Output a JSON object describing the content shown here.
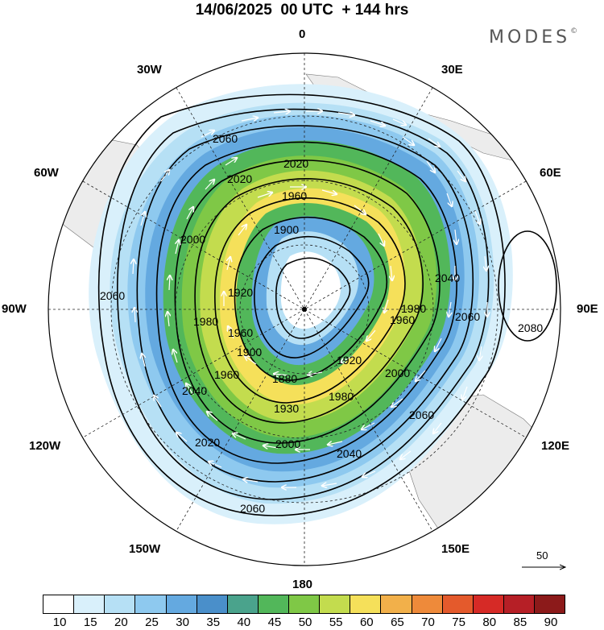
{
  "header": {
    "title": "14/06/2025  00 UTC  + 144 hrs",
    "brand": "MODES",
    "brand_mark": "©"
  },
  "map": {
    "longitude_labels": {
      "top": "0",
      "top_right": "30E",
      "right_upper": "60E",
      "right": "90E",
      "right_lower": "120E",
      "bottom_right": "150E",
      "bottom": "180",
      "bottom_left": "150W",
      "left_lower": "120W",
      "left": "90W",
      "left_upper": "60W",
      "top_left": "30W"
    },
    "contour_labels": [
      "2060",
      "2020",
      "2020",
      "1960",
      "2000",
      "1900",
      "1920",
      "1980",
      "1960",
      "2040",
      "2060",
      "2080",
      "2060",
      "1980",
      "1900",
      "1880",
      "1920",
      "1960",
      "1960",
      "2000",
      "1980",
      "2040",
      "2020",
      "1930",
      "2000",
      "2060",
      "2040",
      "2060"
    ],
    "vector_reference": "50"
  },
  "colorbar": {
    "ticks": [
      "10",
      "15",
      "20",
      "25",
      "30",
      "35",
      "40",
      "45",
      "50",
      "55",
      "60",
      "65",
      "70",
      "75",
      "80",
      "85",
      "90"
    ],
    "colors": [
      "#ffffff",
      "#d9f0fb",
      "#b6e0f5",
      "#8ec9ef",
      "#64a9e0",
      "#4a8fca",
      "#4aa38c",
      "#52b75a",
      "#7fc846",
      "#c3dc4e",
      "#f5e05a",
      "#f2b04a",
      "#ee8a3a",
      "#e45a2c",
      "#d62a26",
      "#b61f26",
      "#8c1a1a"
    ]
  }
}
